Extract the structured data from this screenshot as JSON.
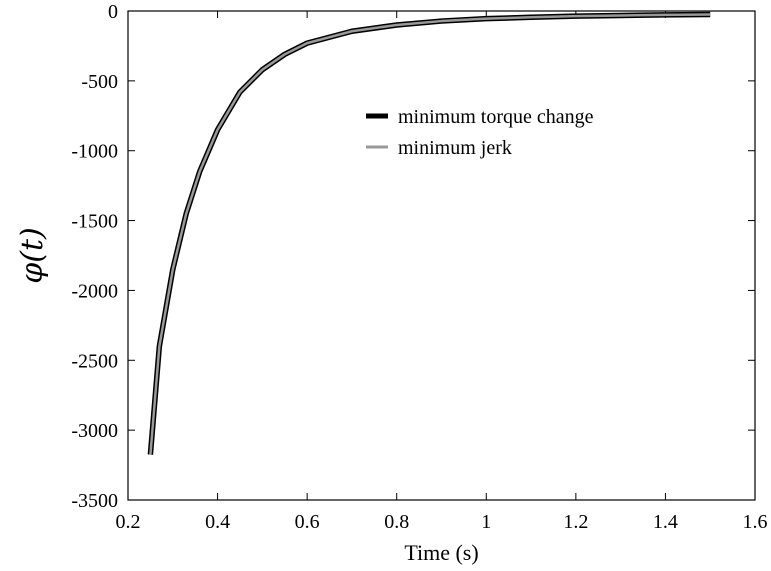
{
  "chart_data": {
    "type": "line",
    "title": "",
    "xlabel": "Time (s)",
    "ylabel": "φ(t)",
    "xlim": [
      0.2,
      1.6
    ],
    "ylim": [
      -3500,
      0
    ],
    "xticks": [
      "0.2",
      "0.4",
      "0.6",
      "0.8",
      "1",
      "1.2",
      "1.4",
      "1.6"
    ],
    "xtick_values": [
      0.2,
      0.4,
      0.6,
      0.8,
      1.0,
      1.2,
      1.4,
      1.6
    ],
    "yticks": [
      "0",
      "-500",
      "-1000",
      "-1500",
      "-2000",
      "-2500",
      "-3000",
      "-3500"
    ],
    "ytick_values": [
      0,
      -500,
      -1000,
      -1500,
      -2000,
      -2500,
      -3000,
      -3500
    ],
    "grid": false,
    "legend_position": "upper-middle",
    "series": [
      {
        "name": "minimum torque change",
        "color": "#000000",
        "x": [
          0.25,
          0.27,
          0.3,
          0.33,
          0.36,
          0.4,
          0.45,
          0.5,
          0.55,
          0.6,
          0.7,
          0.8,
          0.9,
          1.0,
          1.1,
          1.2,
          1.3,
          1.4,
          1.5
        ],
        "y": [
          -3175,
          -2400,
          -1850,
          -1450,
          -1150,
          -850,
          -580,
          -420,
          -310,
          -230,
          -145,
          -100,
          -72,
          -55,
          -45,
          -37,
          -32,
          -28,
          -25
        ]
      },
      {
        "name": "minimum jerk",
        "color": "#999999",
        "x": [
          0.25,
          0.27,
          0.3,
          0.33,
          0.36,
          0.4,
          0.45,
          0.5,
          0.55,
          0.6,
          0.7,
          0.8,
          0.9,
          1.0,
          1.1,
          1.2,
          1.3,
          1.4,
          1.5
        ],
        "y": [
          -3175,
          -2400,
          -1850,
          -1450,
          -1150,
          -850,
          -580,
          -420,
          -310,
          -230,
          -145,
          -100,
          -72,
          -55,
          -45,
          -37,
          -32,
          -28,
          -25
        ]
      }
    ]
  }
}
